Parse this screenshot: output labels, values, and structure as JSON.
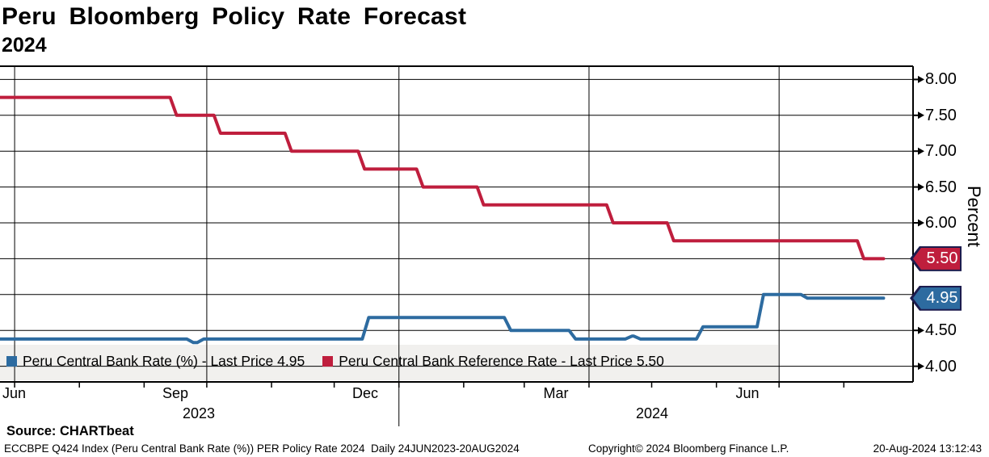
{
  "header": {
    "title": "Peru Bloomberg Policy Rate Forecast",
    "subtitle": "2024"
  },
  "chart_data": {
    "type": "line",
    "title": "Peru Bloomberg Policy Rate Forecast 2024",
    "xlabel": "",
    "ylabel": "Percent",
    "ylim": [
      3.9,
      8.2
    ],
    "y_axis_side": "right",
    "grid": "both",
    "legend_position": "bottom-left",
    "x_range": [
      "2023-06-24",
      "2024-08-20"
    ],
    "y_major_tick_labels": [
      {
        "value": 8.0,
        "label": "8.00"
      },
      {
        "value": 7.5,
        "label": "7.50"
      },
      {
        "value": 7.0,
        "label": "7.00"
      },
      {
        "value": 6.5,
        "label": "6.50"
      },
      {
        "value": 6.0,
        "label": "6.00"
      },
      {
        "value": 4.5,
        "label": "4.50"
      },
      {
        "value": 4.0,
        "label": "4.00"
      }
    ],
    "last_price_badges": [
      {
        "value": 5.5,
        "label": "5.50",
        "color": "#bf1e3d"
      },
      {
        "value": 4.95,
        "label": "4.95",
        "color": "#2d6ba0"
      }
    ],
    "x_tick_labels": [
      {
        "label": "Jun",
        "date": "2023-06-26",
        "align": "left"
      },
      {
        "label": "Sep",
        "date": "2023-09-16"
      },
      {
        "label": "Dec",
        "date": "2023-12-16"
      },
      {
        "label": "Mar",
        "date": "2024-03-16"
      },
      {
        "label": "Jun",
        "date": "2024-06-16"
      }
    ],
    "year_labels": [
      {
        "label": "2023",
        "date": "2023-09-27"
      },
      {
        "label": "2024",
        "date": "2024-05-01"
      }
    ],
    "series": [
      {
        "name": "Peru Central Bank Rate (%)",
        "last_price": 4.95,
        "color": "#2d6ba0",
        "steps": [
          [
            "2023-06-24",
            4.38
          ],
          [
            "2023-09-23",
            4.33
          ],
          [
            "2023-09-28",
            4.38
          ],
          [
            "2023-12-16",
            4.68
          ],
          [
            "2024-02-22",
            4.5
          ],
          [
            "2024-03-24",
            4.38
          ],
          [
            "2024-04-20",
            4.42
          ],
          [
            "2024-04-24",
            4.38
          ],
          [
            "2024-05-24",
            4.55
          ],
          [
            "2024-06-22",
            5.0
          ],
          [
            "2024-07-13",
            4.95
          ],
          [
            "2024-08-20",
            4.95
          ]
        ]
      },
      {
        "name": "Peru Central Bank Reference Rate",
        "last_price": 5.5,
        "color": "#bf1e3d",
        "steps": [
          [
            "2023-06-24",
            7.75
          ],
          [
            "2023-09-15",
            7.5
          ],
          [
            "2023-10-06",
            7.25
          ],
          [
            "2023-11-09",
            7.0
          ],
          [
            "2023-12-14",
            6.75
          ],
          [
            "2024-01-11",
            6.5
          ],
          [
            "2024-02-09",
            6.25
          ],
          [
            "2024-04-11",
            6.0
          ],
          [
            "2024-05-10",
            5.75
          ],
          [
            "2024-08-09",
            5.5
          ],
          [
            "2024-08-20",
            5.5
          ]
        ]
      }
    ]
  },
  "legend": {
    "items": [
      {
        "label": "Peru Central Bank Rate (%) - Last Price 4.95",
        "color": "#2d6ba0"
      },
      {
        "label": "Peru Central Bank Reference Rate - Last Price 5.50",
        "color": "#bf1e3d"
      }
    ]
  },
  "footer": {
    "source": "Source: CHARTbeat",
    "description": "ECCBPE Q424 Index (Peru Central Bank Rate (%)) PER Policy Rate 2024  Daily 24JUN2023-20AUG2024",
    "copyright": "Copyright© 2024 Bloomberg Finance L.P.",
    "timestamp": "20-Aug-2024 13:12:43"
  }
}
